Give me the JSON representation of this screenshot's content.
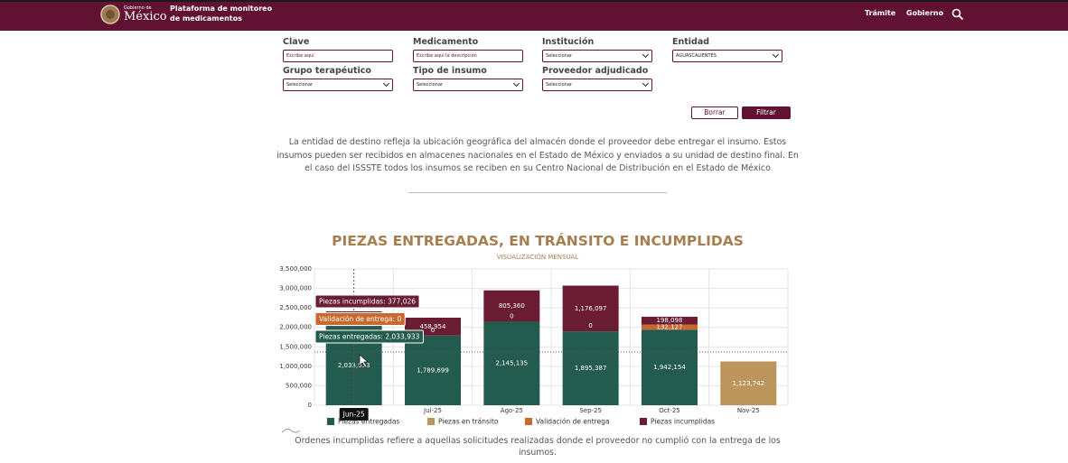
{
  "header": {
    "logo_small": "Gobierno de",
    "logo_big": "México",
    "title_line1": "Plataforma de monitoreo",
    "title_line2": "de medicamentos",
    "nav": [
      "Trámite",
      "Gobierno"
    ]
  },
  "filters": [
    {
      "label": "Clave",
      "placeholder": "Escribe aquí"
    },
    {
      "label": "Medicamento",
      "placeholder": "Escribe aquí la descripción"
    },
    {
      "label": "Institución",
      "placeholder": "Seleccionar"
    },
    {
      "label": "Entidad",
      "placeholder": "AGUASCALIENTES"
    },
    {
      "label": "Grupo terapéutico",
      "placeholder": "Seleccionar"
    },
    {
      "label": "Tipo de insumo",
      "placeholder": "Seleccionar"
    },
    {
      "label": "Proveedor adjudicado",
      "placeholder": "Seleccionar"
    }
  ],
  "buttons": [
    "Borrar",
    "Filtrar"
  ],
  "description": "La entidad de destino refleja la ubicación geográfica del almacén donde el proveedor debe entregar el insumo. Estos insumos pueden ser recibidos en almacenes nacionales en el Estado de México y enviados a su unidad de destino final. En el caso del ISSSTE todos los insumos se reciben en su Centro Nacional de Distribución en el Estado de México",
  "chart_data": {
    "type": "stacked-bar",
    "title": "PIEZAS ENTREGADAS, EN TRÁNSITO E INCUMPLIDAS",
    "subtitle": "VISUALIZACIÓN MENSUAL",
    "categories": [
      "Jun-25",
      "Jul-25",
      "Ago-25",
      "Sep-25",
      "Oct-25",
      "Nov-25"
    ],
    "series": [
      {
        "name": "Piezas entregadas",
        "color": "#235b4e",
        "values": [
          2033933,
          1789699,
          2145135,
          1895387,
          1942154,
          null
        ],
        "value_labels": [
          "2,033,933",
          "1,789,699",
          "2,145,135",
          "1,895,387",
          "1,942,154",
          null
        ]
      },
      {
        "name": "Piezas en tránsito",
        "color": "#bc955c",
        "values": [
          null,
          null,
          null,
          null,
          null,
          1123742
        ],
        "value_labels": [
          null,
          null,
          null,
          null,
          null,
          "1,123,742"
        ]
      },
      {
        "name": "Validación de entrega",
        "color": "#c8692e",
        "values": [
          0,
          0,
          0,
          0,
          132127,
          null
        ],
        "value_labels": [
          null,
          null,
          null,
          null,
          "132,127",
          null
        ]
      },
      {
        "name": "Piezas incumplidas",
        "color": "#691c32",
        "values": [
          377026,
          458954,
          805360,
          1176097,
          198098,
          0
        ],
        "value_labels": [
          "377,026",
          "458,954",
          "805,360",
          "1,176,097",
          "198,098",
          null
        ]
      }
    ],
    "ylim": [
      0,
      3500000
    ],
    "yticks": [
      0,
      {
        "value": 500000,
        "label": "500,000"
      },
      {
        "value": 1000000,
        "label": "1,000,000"
      },
      {
        "value": 1500000,
        "label": "1,500,000"
      },
      {
        "value": 2000000,
        "label": "2,000,000"
      },
      {
        "value": 2500000,
        "label": "2,500,000"
      },
      {
        "value": 3000000,
        "label": "3,000,000"
      },
      {
        "value": 3500000,
        "label": "3,500,000"
      }
    ],
    "grid": true,
    "legend": "bottom",
    "tooltip": {
      "category_index": 0,
      "lines": [
        {
          "text": "Piezas incumplidas: 377,026",
          "series_index": 3
        },
        {
          "text": "Validación de entrega: 0",
          "series_index": 2
        },
        {
          "text": "Piezas entregadas: 2,033,933",
          "series_index": 0
        }
      ]
    }
  },
  "note": "Ordenes incumplidas refiere a aquellas solicitudes realizadas donde el proveedor no cumplió con la entrega de los insumos."
}
